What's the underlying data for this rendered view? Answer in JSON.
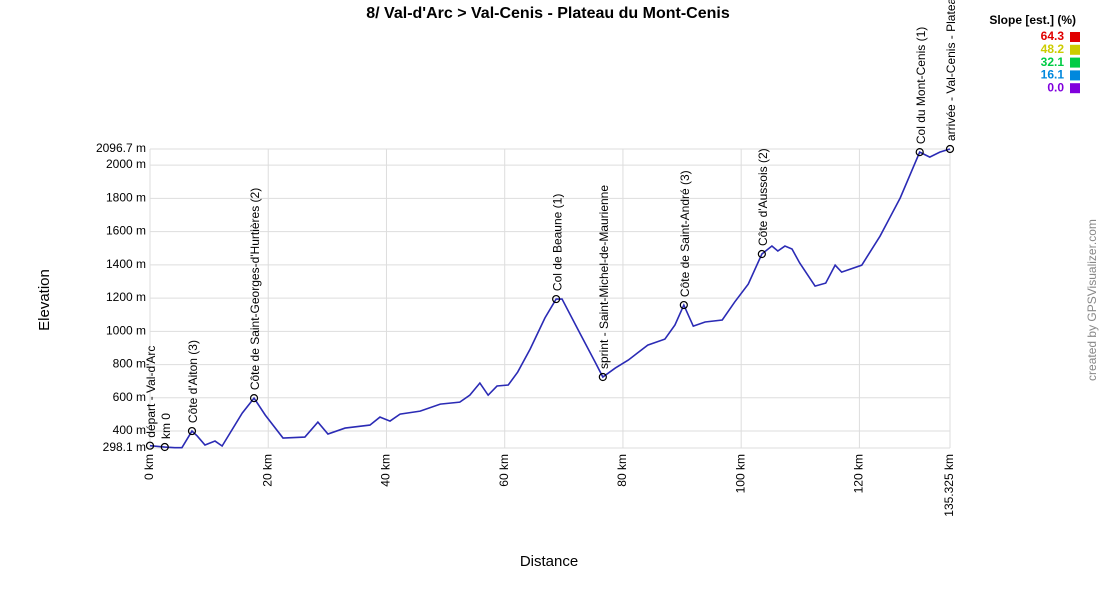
{
  "chart_data": {
    "type": "line",
    "title": "8/ Val-d'Arc > Val-Cenis - Plateau du Mont-Cenis",
    "xlabel": "Distance",
    "ylabel": "Elevation",
    "credit": "created by GPSVisualizer.com",
    "color": "#2b2bb5",
    "grid": true,
    "xlim": [
      0,
      135.325
    ],
    "ylim": [
      298.1,
      2096.7
    ],
    "xticks": [
      {
        "value": 0,
        "label": "0 km"
      },
      {
        "value": 20,
        "label": "20 km"
      },
      {
        "value": 40,
        "label": "40 km"
      },
      {
        "value": 60,
        "label": "60 km"
      },
      {
        "value": 80,
        "label": "80 km"
      },
      {
        "value": 100,
        "label": "100 km"
      },
      {
        "value": 120,
        "label": "120 km"
      },
      {
        "value": 135.325,
        "label": "135.325 km"
      }
    ],
    "yticks": [
      {
        "value": 298.1,
        "label": "298.1 m"
      },
      {
        "value": 400,
        "label": "400 m"
      },
      {
        "value": 600,
        "label": "600 m"
      },
      {
        "value": 800,
        "label": "800 m"
      },
      {
        "value": 1000,
        "label": "1000 m"
      },
      {
        "value": 1200,
        "label": "1200 m"
      },
      {
        "value": 1400,
        "label": "1400 m"
      },
      {
        "value": 1600,
        "label": "1600 m"
      },
      {
        "value": 1800,
        "label": "1800 m"
      },
      {
        "value": 2000,
        "label": "2000 m"
      },
      {
        "value": 2096.7,
        "label": "2096.7 m"
      }
    ],
    "x": [
      0,
      2.5,
      4.2,
      5.4,
      7.1,
      8.0,
      9.3,
      11.0,
      12.2,
      15.6,
      17.6,
      19.5,
      22.5,
      26.2,
      28.4,
      30.1,
      33.0,
      37.2,
      38.9,
      40.6,
      42.3,
      45.7,
      49.1,
      52.4,
      54.1,
      55.8,
      57.2,
      58.7,
      60.6,
      62.2,
      64.3,
      66.8,
      68.7,
      69.7,
      72.8,
      75.3,
      76.6,
      78.7,
      80.9,
      84.2,
      87.1,
      88.8,
      90.3,
      91.9,
      93.9,
      96.8,
      98.9,
      101.2,
      103.5,
      105.2,
      106.2,
      107.4,
      108.6,
      109.9,
      112.5,
      114.3,
      115.9,
      117.0,
      120.4,
      123.5,
      126.9,
      130.2,
      131.9,
      133.6,
      135.325
    ],
    "y": [
      312,
      304,
      300,
      300,
      400,
      370,
      316,
      340,
      310,
      508,
      598,
      496,
      358,
      364,
      454,
      382,
      418,
      436,
      484,
      460,
      502,
      520,
      562,
      574,
      616,
      689,
      616,
      671,
      677,
      755,
      893,
      1080,
      1194,
      1194,
      983,
      815,
      725,
      779,
      827,
      917,
      953,
      1038,
      1158,
      1031,
      1056,
      1068,
      1176,
      1284,
      1465,
      1513,
      1483,
      1513,
      1495,
      1411,
      1272,
      1290,
      1398,
      1356,
      1398,
      1573,
      1802,
      2078,
      2048,
      2078,
      2096.7
    ],
    "waypoints": [
      {
        "name": "départ - Val-d'Arc",
        "x": 0,
        "y": 312
      },
      {
        "name": "km 0",
        "x": 2.5,
        "y": 304
      },
      {
        "name": "Côte d'Aiton (3)",
        "x": 7.1,
        "y": 400
      },
      {
        "name": "Côte de Saint-Georges-d'Hurtières (2)",
        "x": 17.6,
        "y": 598
      },
      {
        "name": "Col de Beaune (1)",
        "x": 68.7,
        "y": 1194
      },
      {
        "name": "sprint - Saint-Michel-de-Maurienne",
        "x": 76.6,
        "y": 725
      },
      {
        "name": "Côte de Saint-André (3)",
        "x": 90.3,
        "y": 1158
      },
      {
        "name": "Côte d'Aussois (2)",
        "x": 103.5,
        "y": 1465
      },
      {
        "name": "Col du Mont-Cenis (1)",
        "x": 130.2,
        "y": 2078
      },
      {
        "name": "arrivée - Val-Cenis - Plateau du Mont-Cenis",
        "x": 135.325,
        "y": 2096.7
      }
    ],
    "legend": {
      "title": "Slope [est.] (%)",
      "items": [
        {
          "value": 64.3,
          "color": "#e00000"
        },
        {
          "value": 48.2,
          "color": "#cccc00"
        },
        {
          "value": 32.1,
          "color": "#00cc44"
        },
        {
          "value": 16.1,
          "color": "#0088dd"
        },
        {
          "value": 0,
          "label": "0.0",
          "color": "#8000dd"
        }
      ]
    }
  }
}
